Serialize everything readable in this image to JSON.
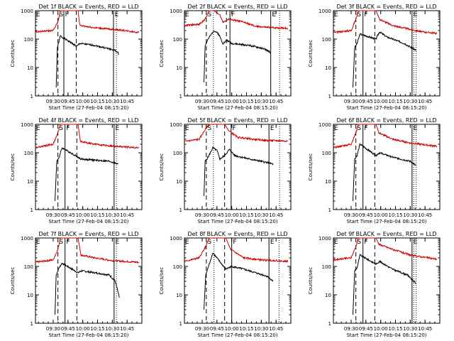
{
  "colors": {
    "events": "#000000",
    "lld": "#cc0000",
    "axes": "#000000",
    "background": "#ffffff"
  },
  "panel_defaults": {
    "ylabel": "Counts/sec",
    "xlabel": "Start Time (27-Feb-04 08:15:20)",
    "y_ticks": [
      "1",
      "10",
      "100",
      "1000"
    ],
    "x_ticks": [
      "09:30",
      "09:45",
      "10:00",
      "10:15",
      "10:30",
      "10:45"
    ],
    "x_tick_hours": [
      9.5,
      9.75,
      10.0,
      10.25,
      10.5,
      10.75
    ],
    "xlim_hours": [
      9.2,
      11.0
    ],
    "ylim": [
      1,
      1000
    ],
    "markers": [
      "E",
      "S",
      "F",
      "E"
    ]
  },
  "chart_data": [
    {
      "type": "line",
      "scale": "log",
      "title": "Det 1f BLACK = Events, RED = LLD",
      "vlines_solid": [
        9.68,
        10.52
      ],
      "vlines_dashed": [
        9.58,
        9.89
      ],
      "vlines_dotted": [
        10.57
      ],
      "series": [
        {
          "name": "BLACK",
          "values": [
            [
              9.55,
              2
            ],
            [
              9.57,
              50
            ],
            [
              9.59,
              70
            ],
            [
              9.62,
              130
            ],
            [
              9.9,
              55
            ],
            [
              9.95,
              70
            ],
            [
              10.2,
              60
            ],
            [
              10.45,
              45
            ],
            [
              10.55,
              40
            ],
            [
              10.61,
              30
            ]
          ]
        },
        {
          "name": "RED",
          "values": [
            [
              9.2,
              180
            ],
            [
              9.5,
              200
            ],
            [
              9.58,
              400
            ],
            [
              9.62,
              1000
            ],
            [
              9.92,
              1000
            ],
            [
              9.95,
              300
            ],
            [
              10.2,
              250
            ],
            [
              10.5,
              220
            ],
            [
              10.7,
              200
            ],
            [
              10.95,
              170
            ]
          ]
        }
      ]
    },
    {
      "type": "line",
      "scale": "log",
      "title": "Det 2f BLACK = Events, RED = LLD",
      "vlines_solid": [
        9.97,
        10.66
      ],
      "vlines_dashed": [
        9.57,
        9.91
      ],
      "vlines_dotted": [
        9.69,
        10.81
      ],
      "series": [
        {
          "name": "BLACK",
          "values": [
            [
              9.53,
              3
            ],
            [
              9.55,
              60
            ],
            [
              9.6,
              100
            ],
            [
              9.7,
              200
            ],
            [
              9.78,
              150
            ],
            [
              9.85,
              70
            ],
            [
              9.92,
              90
            ],
            [
              10.0,
              70
            ],
            [
              10.3,
              60
            ],
            [
              10.55,
              45
            ],
            [
              10.65,
              35
            ]
          ]
        },
        {
          "name": "RED",
          "values": [
            [
              9.2,
              300
            ],
            [
              9.45,
              330
            ],
            [
              9.55,
              500
            ],
            [
              9.62,
              1000
            ],
            [
              9.7,
              1000
            ],
            [
              9.8,
              700
            ],
            [
              9.85,
              400
            ],
            [
              9.95,
              500
            ],
            [
              10.2,
              400
            ],
            [
              10.4,
              280
            ],
            [
              10.6,
              260
            ],
            [
              10.95,
              240
            ]
          ]
        }
      ]
    },
    {
      "type": "line",
      "scale": "log",
      "title": "Det 3f BLACK = Events, RED = LLD",
      "vlines_solid": [
        9.7,
        10.53
      ],
      "vlines_dashed": [
        9.58,
        9.9
      ],
      "vlines_dotted": [
        10.56,
        10.6
      ],
      "series": [
        {
          "name": "BLACK",
          "values": [
            [
              9.53,
              2
            ],
            [
              9.56,
              50
            ],
            [
              9.6,
              70
            ],
            [
              9.65,
              150
            ],
            [
              9.92,
              100
            ],
            [
              9.98,
              180
            ],
            [
              10.1,
              120
            ],
            [
              10.4,
              70
            ],
            [
              10.6,
              40
            ]
          ]
        },
        {
          "name": "RED",
          "values": [
            [
              9.2,
              170
            ],
            [
              9.5,
              200
            ],
            [
              9.58,
              500
            ],
            [
              9.62,
              1000
            ],
            [
              9.92,
              1000
            ],
            [
              9.98,
              500
            ],
            [
              10.2,
              300
            ],
            [
              10.5,
              220
            ],
            [
              10.7,
              180
            ],
            [
              10.95,
              160
            ]
          ]
        }
      ]
    },
    {
      "type": "line",
      "scale": "log",
      "title": "Det 4f BLACK = Events, RED = LLD",
      "vlines_solid": [
        9.7,
        10.53
      ],
      "vlines_dashed": [
        9.58,
        9.9
      ],
      "vlines_dotted": [
        10.57
      ],
      "series": [
        {
          "name": "BLACK",
          "values": [
            [
              9.53,
              2
            ],
            [
              9.56,
              50
            ],
            [
              9.6,
              70
            ],
            [
              9.65,
              150
            ],
            [
              9.92,
              70
            ],
            [
              9.97,
              60
            ],
            [
              10.2,
              55
            ],
            [
              10.45,
              50
            ],
            [
              10.6,
              40
            ]
          ]
        },
        {
          "name": "RED",
          "values": [
            [
              9.2,
              150
            ],
            [
              9.5,
              200
            ],
            [
              9.58,
              500
            ],
            [
              9.62,
              1000
            ],
            [
              9.92,
              1000
            ],
            [
              9.96,
              250
            ],
            [
              10.2,
              200
            ],
            [
              10.5,
              170
            ],
            [
              10.95,
              150
            ]
          ]
        }
      ]
    },
    {
      "type": "line",
      "scale": "log",
      "title": "Det 5f BLACK = Events, RED = LLD",
      "vlines_solid": [
        9.99,
        10.63
      ],
      "vlines_dashed": [
        9.57,
        9.88
      ],
      "vlines_dotted": [
        9.69,
        10.81
      ],
      "series": [
        {
          "name": "BLACK",
          "values": [
            [
              9.53,
              3
            ],
            [
              9.55,
              50
            ],
            [
              9.6,
              70
            ],
            [
              9.68,
              150
            ],
            [
              9.75,
              120
            ],
            [
              9.8,
              60
            ],
            [
              9.88,
              80
            ],
            [
              9.96,
              130
            ],
            [
              10.05,
              80
            ],
            [
              10.3,
              60
            ],
            [
              10.5,
              50
            ],
            [
              10.7,
              40
            ]
          ]
        },
        {
          "name": "RED",
          "values": [
            [
              9.2,
              250
            ],
            [
              9.45,
              300
            ],
            [
              9.56,
              700
            ],
            [
              9.62,
              1000
            ],
            [
              9.88,
              1000
            ],
            [
              9.95,
              600
            ],
            [
              10.1,
              350
            ],
            [
              10.35,
              300
            ],
            [
              10.6,
              270
            ],
            [
              10.95,
              260
            ]
          ]
        }
      ]
    },
    {
      "type": "line",
      "scale": "log",
      "title": "Det 6f BLACK = Events, RED = LLD",
      "vlines_solid": [
        9.7,
        10.53
      ],
      "vlines_dashed": [
        9.58,
        9.9
      ],
      "vlines_dotted": [
        10.56,
        10.6
      ],
      "series": [
        {
          "name": "BLACK",
          "values": [
            [
              9.53,
              2
            ],
            [
              9.56,
              60
            ],
            [
              9.6,
              80
            ],
            [
              9.65,
              200
            ],
            [
              9.92,
              80
            ],
            [
              9.98,
              100
            ],
            [
              10.2,
              70
            ],
            [
              10.5,
              50
            ],
            [
              10.6,
              35
            ]
          ]
        },
        {
          "name": "RED",
          "values": [
            [
              9.2,
              150
            ],
            [
              9.5,
              200
            ],
            [
              9.58,
              500
            ],
            [
              9.62,
              1000
            ],
            [
              9.92,
              1000
            ],
            [
              9.97,
              500
            ],
            [
              10.2,
              300
            ],
            [
              10.5,
              220
            ],
            [
              10.95,
              170
            ]
          ]
        }
      ]
    },
    {
      "type": "line",
      "scale": "log",
      "title": "Det 7f BLACK = Events, RED = LLD",
      "vlines_solid": [
        9.7,
        10.53
      ],
      "vlines_dashed": [
        9.58,
        9.9
      ],
      "vlines_dotted": [
        10.57
      ],
      "series": [
        {
          "name": "BLACK",
          "values": [
            [
              9.53,
              2
            ],
            [
              9.55,
              50
            ],
            [
              9.6,
              90
            ],
            [
              9.65,
              130
            ],
            [
              9.92,
              60
            ],
            [
              9.98,
              70
            ],
            [
              10.2,
              60
            ],
            [
              10.45,
              50
            ],
            [
              10.55,
              30
            ],
            [
              10.62,
              8
            ]
          ]
        },
        {
          "name": "RED",
          "values": [
            [
              9.2,
              140
            ],
            [
              9.5,
              170
            ],
            [
              9.58,
              400
            ],
            [
              9.62,
              1000
            ],
            [
              9.92,
              1000
            ],
            [
              9.97,
              250
            ],
            [
              10.2,
              200
            ],
            [
              10.5,
              160
            ],
            [
              10.95,
              140
            ]
          ]
        }
      ]
    },
    {
      "type": "line",
      "scale": "log",
      "title": "Det 8f BLACK = Events, RED = LLD",
      "vlines_solid": [
        10.0,
        10.63
      ],
      "vlines_dashed": [
        9.57,
        9.88
      ],
      "vlines_dotted": [
        9.7,
        10.8
      ],
      "series": [
        {
          "name": "BLACK",
          "values": [
            [
              9.53,
              3
            ],
            [
              9.56,
              50
            ],
            [
              9.62,
              120
            ],
            [
              9.68,
              300
            ],
            [
              9.9,
              80
            ],
            [
              10.0,
              100
            ],
            [
              10.2,
              80
            ],
            [
              10.4,
              60
            ],
            [
              10.6,
              45
            ],
            [
              10.7,
              30
            ]
          ]
        },
        {
          "name": "RED",
          "values": [
            [
              9.2,
              150
            ],
            [
              9.45,
              200
            ],
            [
              9.56,
              500
            ],
            [
              9.62,
              1000
            ],
            [
              9.9,
              1000
            ],
            [
              9.98,
              400
            ],
            [
              10.2,
              200
            ],
            [
              10.5,
              170
            ],
            [
              10.95,
              150
            ]
          ]
        }
      ]
    },
    {
      "type": "line",
      "scale": "log",
      "title": "Det 9f BLACK = Events, RED = LLD",
      "vlines_solid": [
        9.7,
        10.53
      ],
      "vlines_dashed": [
        9.58,
        9.9
      ],
      "vlines_dotted": [
        10.56,
        10.6
      ],
      "series": [
        {
          "name": "BLACK",
          "values": [
            [
              9.53,
              2
            ],
            [
              9.56,
              70
            ],
            [
              9.6,
              90
            ],
            [
              9.65,
              250
            ],
            [
              9.92,
              120
            ],
            [
              9.98,
              150
            ],
            [
              10.2,
              80
            ],
            [
              10.45,
              50
            ],
            [
              10.6,
              25
            ]
          ]
        },
        {
          "name": "RED",
          "values": [
            [
              9.2,
              170
            ],
            [
              9.5,
              200
            ],
            [
              9.58,
              500
            ],
            [
              9.62,
              1000
            ],
            [
              9.92,
              1000
            ],
            [
              9.97,
              600
            ],
            [
              10.2,
              400
            ],
            [
              10.5,
              250
            ],
            [
              10.95,
              180
            ]
          ]
        }
      ]
    }
  ]
}
